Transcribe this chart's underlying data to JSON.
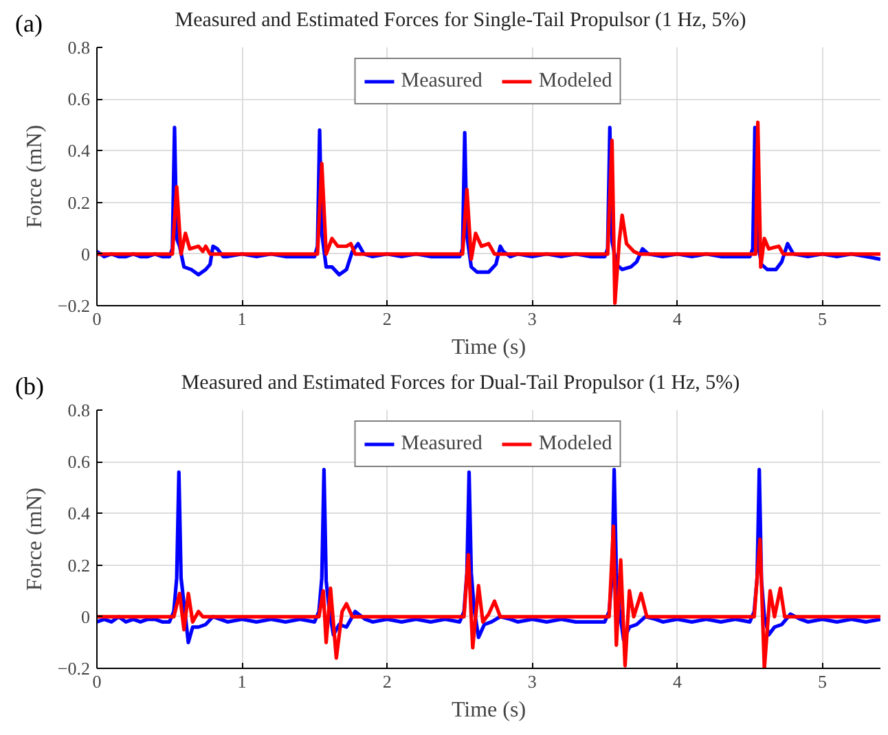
{
  "chart_data": [
    {
      "type": "line",
      "title": "Measured and Estimated Forces for Single-Tail Propulsor (1 Hz, 5%)",
      "xlabel": "Time (s)",
      "ylabel": "Force (mN)",
      "annotations": [
        "(a)"
      ],
      "xlim": [
        0,
        5.4
      ],
      "ylim": [
        -0.2,
        0.8
      ],
      "xticks": [
        0,
        1,
        2,
        3,
        4,
        5
      ],
      "yticks": [
        {
          "value": -0.2,
          "label": "−0.2"
        },
        0,
        0.2,
        0.4,
        0.6,
        0.8
      ],
      "grid": true,
      "legend": "top",
      "line_style": "solid",
      "marker": "none",
      "series": [
        {
          "name": "Measured",
          "color": "#0000ff",
          "x": [
            0,
            0.05,
            0.1,
            0.15,
            0.2,
            0.25,
            0.3,
            0.35,
            0.4,
            0.45,
            0.5,
            0.52,
            0.535,
            0.55,
            0.57,
            0.6,
            0.65,
            0.7,
            0.75,
            0.78,
            0.8,
            0.83,
            0.87,
            0.9,
            1.0,
            1.1,
            1.2,
            1.3,
            1.4,
            1.5,
            1.52,
            1.535,
            1.55,
            1.58,
            1.62,
            1.67,
            1.72,
            1.76,
            1.8,
            1.84,
            1.9,
            2.0,
            2.1,
            2.2,
            2.3,
            2.4,
            2.5,
            2.52,
            2.535,
            2.55,
            2.58,
            2.62,
            2.7,
            2.75,
            2.78,
            2.8,
            2.85,
            2.9,
            3.0,
            3.1,
            3.2,
            3.3,
            3.4,
            3.5,
            3.52,
            3.535,
            3.55,
            3.58,
            3.62,
            3.68,
            3.72,
            3.76,
            3.8,
            3.9,
            4.0,
            4.1,
            4.2,
            4.3,
            4.4,
            4.5,
            4.52,
            4.535,
            4.55,
            4.58,
            4.62,
            4.68,
            4.72,
            4.76,
            4.8,
            4.9,
            5.0,
            5.1,
            5.2,
            5.3,
            5.4
          ],
          "values": [
            0.01,
            -0.01,
            0.0,
            -0.01,
            -0.01,
            0.0,
            -0.01,
            -0.01,
            0.0,
            -0.01,
            -0.01,
            0.02,
            0.49,
            0.06,
            0.03,
            -0.05,
            -0.06,
            -0.08,
            -0.06,
            -0.04,
            0.03,
            0.02,
            -0.01,
            -0.01,
            0.0,
            -0.01,
            0.0,
            -0.01,
            -0.01,
            -0.01,
            0.03,
            0.48,
            0.08,
            -0.05,
            -0.05,
            -0.08,
            -0.06,
            0.01,
            0.04,
            0.0,
            -0.01,
            0.0,
            -0.01,
            0.0,
            -0.01,
            -0.01,
            -0.01,
            0.02,
            0.47,
            0.07,
            -0.05,
            -0.07,
            -0.07,
            -0.04,
            0.03,
            0.01,
            -0.01,
            0.0,
            -0.01,
            0.0,
            -0.01,
            0.0,
            -0.01,
            -0.01,
            0.02,
            0.49,
            0.05,
            -0.04,
            -0.06,
            -0.05,
            -0.03,
            0.02,
            0.0,
            -0.01,
            0.0,
            -0.01,
            0.0,
            -0.01,
            -0.01,
            -0.01,
            0.02,
            0.49,
            0.06,
            -0.04,
            -0.06,
            -0.06,
            -0.03,
            0.04,
            0.0,
            -0.01,
            0.0,
            -0.01,
            0.0,
            -0.01,
            -0.02
          ]
        },
        {
          "name": "Modeled",
          "color": "#ff0000",
          "x": [
            0,
            0.52,
            0.55,
            0.58,
            0.61,
            0.64,
            0.7,
            0.73,
            0.75,
            0.78,
            1.52,
            1.55,
            1.58,
            1.62,
            1.66,
            1.72,
            1.75,
            1.78,
            2.52,
            2.55,
            2.58,
            2.61,
            2.65,
            2.7,
            2.74,
            3.52,
            3.55,
            3.57,
            3.6,
            3.62,
            3.65,
            3.7,
            3.74,
            4.54,
            4.555,
            4.575,
            4.6,
            4.63,
            4.7,
            4.73,
            5.4
          ],
          "values": [
            0,
            0,
            0.26,
            0.0,
            0.08,
            0.02,
            0.03,
            0.01,
            0.03,
            0.0,
            0,
            0.35,
            0.0,
            0.06,
            0.03,
            0.03,
            0.04,
            0.0,
            0,
            0.25,
            -0.02,
            0.08,
            0.03,
            0.04,
            0.0,
            0,
            0.44,
            -0.19,
            0.05,
            0.15,
            0.04,
            0.01,
            0.0,
            0,
            0.51,
            -0.05,
            0.06,
            0.02,
            0.03,
            0.0,
            0
          ]
        }
      ]
    },
    {
      "type": "line",
      "title": "Measured and Estimated Forces for Dual-Tail Propulsor (1 Hz, 5%)",
      "xlabel": "Time (s)",
      "ylabel": "Force (mN)",
      "annotations": [
        "(b)"
      ],
      "xlim": [
        0,
        5.4
      ],
      "ylim": [
        -0.2,
        0.8
      ],
      "xticks": [
        0,
        1,
        2,
        3,
        4,
        5
      ],
      "yticks": [
        {
          "value": -0.2,
          "label": "−0.2"
        },
        0,
        0.2,
        0.4,
        0.6,
        0.8
      ],
      "grid": true,
      "legend": "top",
      "line_style": "solid",
      "marker": "none",
      "series": [
        {
          "name": "Measured",
          "color": "#0000ff",
          "x": [
            0,
            0.05,
            0.1,
            0.15,
            0.2,
            0.25,
            0.3,
            0.35,
            0.4,
            0.45,
            0.5,
            0.53,
            0.55,
            0.565,
            0.58,
            0.6,
            0.63,
            0.66,
            0.7,
            0.75,
            0.8,
            0.85,
            0.9,
            1.0,
            1.1,
            1.2,
            1.3,
            1.4,
            1.5,
            1.53,
            1.55,
            1.565,
            1.58,
            1.6,
            1.63,
            1.67,
            1.72,
            1.78,
            1.85,
            1.9,
            2.0,
            2.1,
            2.2,
            2.3,
            2.4,
            2.5,
            2.53,
            2.55,
            2.565,
            2.58,
            2.6,
            2.63,
            2.67,
            2.72,
            2.78,
            2.85,
            2.9,
            3.0,
            3.1,
            3.2,
            3.3,
            3.4,
            3.5,
            3.53,
            3.55,
            3.565,
            3.58,
            3.6,
            3.63,
            3.67,
            3.72,
            3.78,
            3.85,
            3.9,
            4.0,
            4.1,
            4.2,
            4.3,
            4.4,
            4.5,
            4.53,
            4.55,
            4.565,
            4.58,
            4.6,
            4.63,
            4.67,
            4.72,
            4.78,
            4.85,
            4.9,
            5.0,
            5.1,
            5.2,
            5.3,
            5.4
          ],
          "values": [
            -0.02,
            -0.01,
            -0.02,
            0.0,
            -0.02,
            -0.01,
            -0.02,
            -0.01,
            -0.01,
            -0.02,
            -0.02,
            0.02,
            0.15,
            0.56,
            0.15,
            0.05,
            -0.1,
            -0.04,
            -0.04,
            -0.03,
            0.0,
            -0.01,
            -0.02,
            -0.01,
            -0.02,
            -0.01,
            -0.02,
            -0.01,
            -0.02,
            0.02,
            0.15,
            0.57,
            0.14,
            0.03,
            -0.07,
            -0.03,
            -0.04,
            0.02,
            -0.01,
            -0.02,
            -0.01,
            -0.02,
            -0.01,
            -0.02,
            -0.01,
            -0.02,
            0.02,
            0.17,
            0.56,
            0.17,
            0.03,
            -0.08,
            -0.03,
            -0.02,
            0.0,
            -0.01,
            -0.02,
            -0.01,
            -0.02,
            -0.01,
            -0.02,
            -0.02,
            -0.02,
            0.02,
            0.15,
            0.57,
            0.17,
            0.03,
            -0.09,
            -0.04,
            -0.03,
            0.0,
            -0.01,
            -0.02,
            -0.01,
            -0.02,
            -0.01,
            -0.02,
            -0.01,
            -0.02,
            0.02,
            0.15,
            0.57,
            0.14,
            0.0,
            -0.07,
            -0.04,
            -0.03,
            0.01,
            -0.01,
            -0.02,
            -0.01,
            -0.02,
            -0.01,
            -0.02,
            -0.01
          ]
        },
        {
          "name": "Modeled",
          "color": "#ff0000",
          "x": [
            0,
            0.53,
            0.57,
            0.6,
            0.63,
            0.66,
            0.7,
            0.73,
            1.53,
            1.56,
            1.58,
            1.61,
            1.65,
            1.69,
            1.72,
            1.76,
            2.53,
            2.56,
            2.59,
            2.63,
            2.66,
            2.7,
            2.74,
            2.78,
            3.53,
            3.56,
            3.58,
            3.61,
            3.64,
            3.67,
            3.7,
            3.75,
            3.79,
            4.53,
            4.57,
            4.6,
            4.64,
            4.67,
            4.71,
            4.74,
            5.4
          ],
          "values": [
            0,
            0,
            0.09,
            -0.05,
            0.09,
            -0.02,
            0.02,
            0.0,
            0,
            0.1,
            -0.1,
            0.11,
            -0.16,
            0.02,
            0.05,
            0.0,
            0,
            0.24,
            -0.12,
            0.12,
            -0.02,
            0.01,
            0.06,
            0.0,
            0,
            0.35,
            -0.11,
            0.22,
            -0.19,
            0.1,
            0.0,
            0.09,
            0.0,
            0,
            0.3,
            -0.2,
            0.1,
            0.0,
            0.11,
            0.0,
            0
          ]
        }
      ]
    }
  ]
}
